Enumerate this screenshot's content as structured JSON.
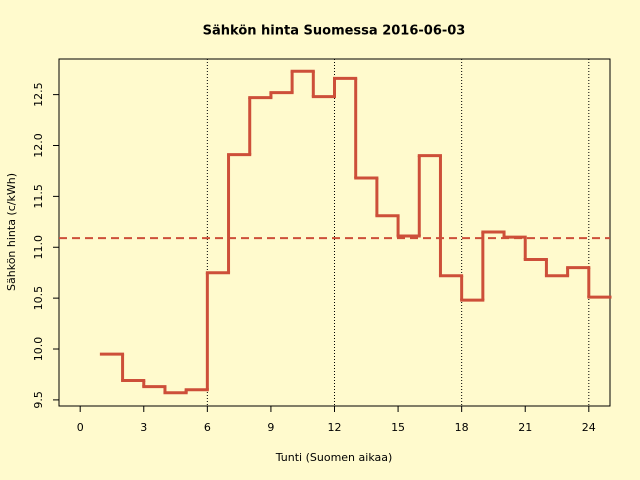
{
  "chart_data": {
    "type": "step",
    "title": "Sähkön hinta Suomessa 2016-06-03",
    "x_label": "Tunti (Suomen aikaa)",
    "y_label": "Sähkön hinta (c/kWh)",
    "x": [
      1,
      2,
      3,
      4,
      5,
      6,
      7,
      8,
      9,
      10,
      11,
      12,
      13,
      14,
      15,
      16,
      17,
      18,
      19,
      20,
      21,
      22,
      23,
      24
    ],
    "series": [
      {
        "color": "#cd4f39",
        "values": [
          9.95,
          9.69,
          9.63,
          9.57,
          9.6,
          10.75,
          11.91,
          12.47,
          12.52,
          12.73,
          12.48,
          12.66,
          11.68,
          11.31,
          11.11,
          11.9,
          10.72,
          10.48,
          11.15,
          11.1,
          10.88,
          10.72,
          10.8,
          10.51
        ]
      }
    ],
    "mean_line": 11.09,
    "vlines": [
      6,
      12,
      18,
      24
    ],
    "xlim": [
      -1,
      25
    ],
    "ylim": [
      9.44,
      12.85
    ],
    "xticks": [
      0,
      3,
      6,
      9,
      12,
      15,
      18,
      21,
      24
    ],
    "yticks": [
      9.5,
      {
        "value": 10,
        "label": "10.0"
      },
      10.5,
      11.5,
      {
        "value": 11,
        "label": "11.0"
      },
      {
        "value": 12,
        "label": "12.0"
      },
      12.5
    ]
  }
}
